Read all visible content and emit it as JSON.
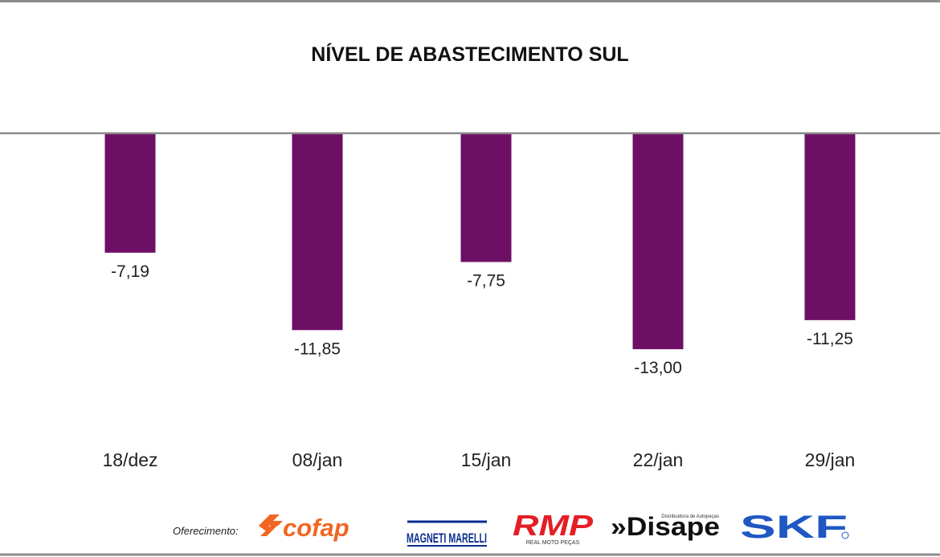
{
  "chart_data": {
    "type": "bar",
    "title": "NÍVEL DE ABASTECIMENTO SUL",
    "categories": [
      "18/dez",
      "08/jan",
      "15/jan",
      "22/jan",
      "29/jan"
    ],
    "values": [
      -7.19,
      -11.85,
      -7.75,
      -13.0,
      -11.25
    ],
    "value_labels": [
      "-7,19",
      "-11,85",
      "-7,75",
      "-13,00",
      "-11,25"
    ],
    "ylim": [
      -13.6,
      0
    ],
    "xlabel": "",
    "ylabel": "",
    "grid": false,
    "bar_color": "#6e0f66"
  },
  "footer": {
    "sponsor_label": "Oferecimento:",
    "logos": [
      {
        "name": "cofap",
        "text": "cofap",
        "color": "#f26522"
      },
      {
        "name": "magneti-marelli",
        "text": "MAGNETI MARELLI",
        "color": "#0a2d8f"
      },
      {
        "name": "rmp",
        "text": "RMP",
        "subtext": "REAL MOTO PEÇAS",
        "color": "#e31e24"
      },
      {
        "name": "disape",
        "text": "»Disape",
        "subtext": "Distribuidora de Autopeças",
        "color": "#111111"
      },
      {
        "name": "skf",
        "text": "SKF",
        "color": "#1f57c3"
      }
    ]
  },
  "colors": {
    "frame_line": "#8c8c8c",
    "bar": "#6e0f66"
  }
}
